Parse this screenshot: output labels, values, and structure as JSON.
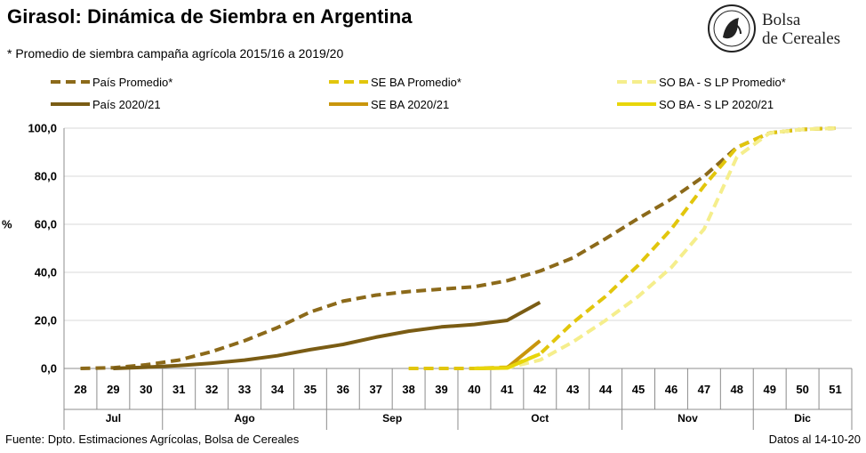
{
  "header": {
    "title": "Girasol: Dinámica de Siembra en Argentina",
    "subtitle": "* Promedio de siembra campaña agrícola 2015/16 a 2019/20"
  },
  "logo": {
    "line1": "Bolsa",
    "line2": "de Cereales"
  },
  "footer": {
    "source": "Fuente: Dpto. Estimaciones Agrícolas, Bolsa de Cereales",
    "date": "Datos al 14-10-20"
  },
  "chart_data": {
    "type": "line",
    "ylabel": "%",
    "ylim": [
      0,
      100
    ],
    "yticks": [
      "0,0",
      "20,0",
      "40,0",
      "60,0",
      "80,0",
      "100,0"
    ],
    "grid": true,
    "legend_position": "top",
    "categories": [
      "28",
      "29",
      "30",
      "31",
      "32",
      "33",
      "34",
      "35",
      "36",
      "37",
      "38",
      "39",
      "40",
      "41",
      "42",
      "43",
      "44",
      "45",
      "46",
      "47",
      "48",
      "49",
      "50",
      "51"
    ],
    "months": [
      {
        "label": "Jul",
        "from": 0,
        "to": 2
      },
      {
        "label": "Ago",
        "from": 3,
        "to": 7
      },
      {
        "label": "Sep",
        "from": 8,
        "to": 11
      },
      {
        "label": "Oct",
        "from": 12,
        "to": 16
      },
      {
        "label": "Nov",
        "from": 17,
        "to": 20
      },
      {
        "label": "Dic",
        "from": 21,
        "to": 23
      }
    ],
    "series": [
      {
        "name": "País Promedio*",
        "color": "#8C6A1A",
        "dashed": true,
        "values": [
          0,
          0.3,
          1.5,
          3.5,
          7,
          11.5,
          17,
          23.5,
          28,
          30.5,
          32,
          33,
          34,
          36.5,
          40.5,
          46,
          54,
          62.5,
          70.5,
          80,
          92,
          98,
          99.5,
          100
        ]
      },
      {
        "name": "SE BA Promedio*",
        "color": "#E2C60C",
        "dashed": true,
        "values": [
          null,
          null,
          null,
          null,
          null,
          null,
          null,
          null,
          null,
          null,
          0,
          0,
          0,
          0.5,
          6,
          19,
          30,
          43,
          58,
          76,
          92,
          98,
          99.5,
          100
        ]
      },
      {
        "name": "SO BA - S LP Promedio*",
        "color": "#F5EE8C",
        "dashed": true,
        "values": [
          null,
          null,
          null,
          null,
          null,
          null,
          null,
          null,
          null,
          null,
          null,
          null,
          0,
          0.2,
          3.5,
          11,
          20,
          30,
          42,
          58,
          88,
          98,
          99.5,
          100
        ]
      },
      {
        "name": "País 2020/21",
        "color": "#7A5C14",
        "dashed": false,
        "values": [
          null,
          0,
          0.5,
          1.2,
          2.2,
          3.5,
          5.3,
          7.8,
          10,
          13,
          15.5,
          17.3,
          18.3,
          20,
          27.5,
          null,
          null,
          null,
          null,
          null,
          null,
          null,
          null,
          null
        ]
      },
      {
        "name": "SE BA 2020/21",
        "color": "#C9960C",
        "dashed": false,
        "values": [
          null,
          null,
          null,
          null,
          null,
          null,
          null,
          null,
          null,
          null,
          null,
          null,
          0,
          0.3,
          11.5,
          null,
          null,
          null,
          null,
          null,
          null,
          null,
          null,
          null
        ]
      },
      {
        "name": "SO BA - S LP 2020/21",
        "color": "#E8D60A",
        "dashed": false,
        "values": [
          null,
          null,
          null,
          null,
          null,
          null,
          null,
          null,
          null,
          null,
          null,
          null,
          0,
          0.2,
          6,
          null,
          null,
          null,
          null,
          null,
          null,
          null,
          null,
          null
        ]
      }
    ]
  }
}
